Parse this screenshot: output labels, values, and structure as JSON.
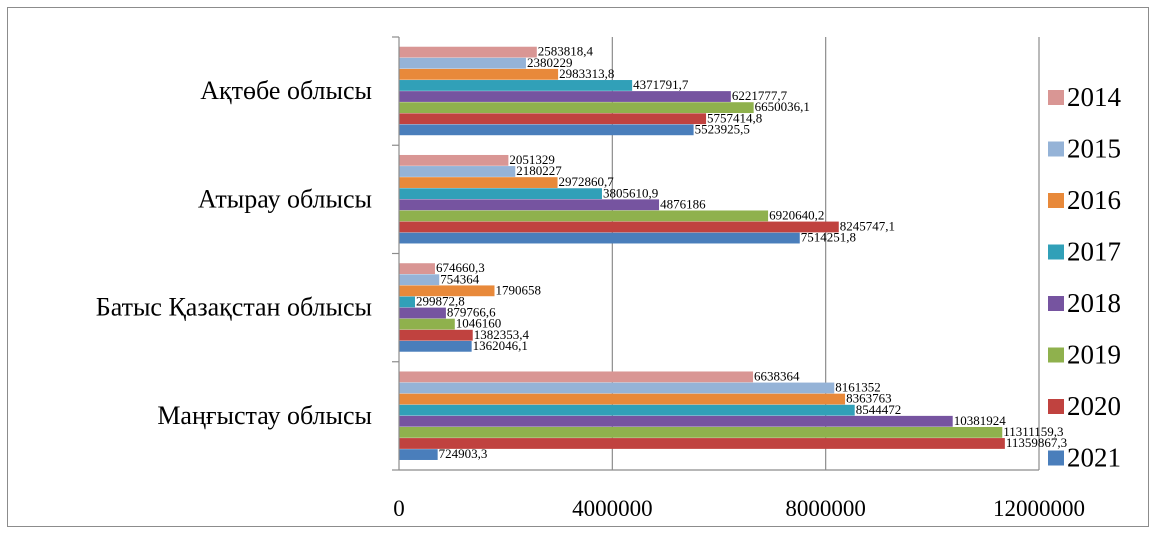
{
  "chart_data": {
    "type": "bar",
    "orientation": "horizontal",
    "categories": [
      "Ақтөбе облысы",
      "Атырау облысы",
      "Батыс Қазақстан облысы",
      "Маңғыстау облысы"
    ],
    "series": [
      {
        "name": "2014",
        "color": "#d99694",
        "values": [
          2583818.4,
          2051329,
          674660.3,
          6638364
        ],
        "labels": [
          "2583818,4",
          "2051329",
          "674660,3",
          "6638364"
        ]
      },
      {
        "name": "2015",
        "color": "#95b3d7",
        "values": [
          2380229,
          2180227,
          754364,
          8161352
        ],
        "labels": [
          "2380229",
          "2180227",
          "754364",
          "8161352"
        ]
      },
      {
        "name": "2016",
        "color": "#e8893a",
        "values": [
          2983313.8,
          2972860.7,
          1790658,
          8363763
        ],
        "labels": [
          "2983313,8",
          "2972860,7",
          "1790658",
          "8363763"
        ]
      },
      {
        "name": "2017",
        "color": "#31a0b8",
        "values": [
          4371791.7,
          3805610.9,
          299872.8,
          8544472
        ],
        "labels": [
          "4371791,7",
          "3805610,9",
          "299872,8",
          "8544472"
        ]
      },
      {
        "name": "2018",
        "color": "#7654a0",
        "values": [
          6221777.7,
          4876186,
          879766.6,
          10381924
        ],
        "labels": [
          "6221777,7",
          "4876186",
          "879766,6",
          "10381924"
        ]
      },
      {
        "name": "2019",
        "color": "#8fb14d",
        "values": [
          6650036.1,
          6920640.2,
          1046160,
          11311159.3
        ],
        "labels": [
          "6650036,1",
          "6920640,2",
          "1046160",
          "11311159,3"
        ]
      },
      {
        "name": "2020",
        "color": "#c0423f",
        "values": [
          5757414.8,
          8245747.1,
          1382353.4,
          11359867.3
        ],
        "labels": [
          "5757414,8",
          "8245747,1",
          "1382353,4",
          "11359867,3"
        ]
      },
      {
        "name": "2021",
        "color": "#4a7ebb",
        "values": [
          5523925.5,
          7514251.8,
          1362046.1,
          724903.3
        ],
        "labels": [
          "5523925,5",
          "7514251,8",
          "1362046,1",
          "724903,3"
        ]
      }
    ],
    "xlim": [
      0,
      12000000
    ],
    "xticks": [
      0,
      4000000,
      8000000,
      12000000
    ],
    "xtick_labels": [
      "0",
      "4000000",
      "8000000",
      "12000000"
    ],
    "grid": "vertical",
    "legend_position": "right"
  }
}
